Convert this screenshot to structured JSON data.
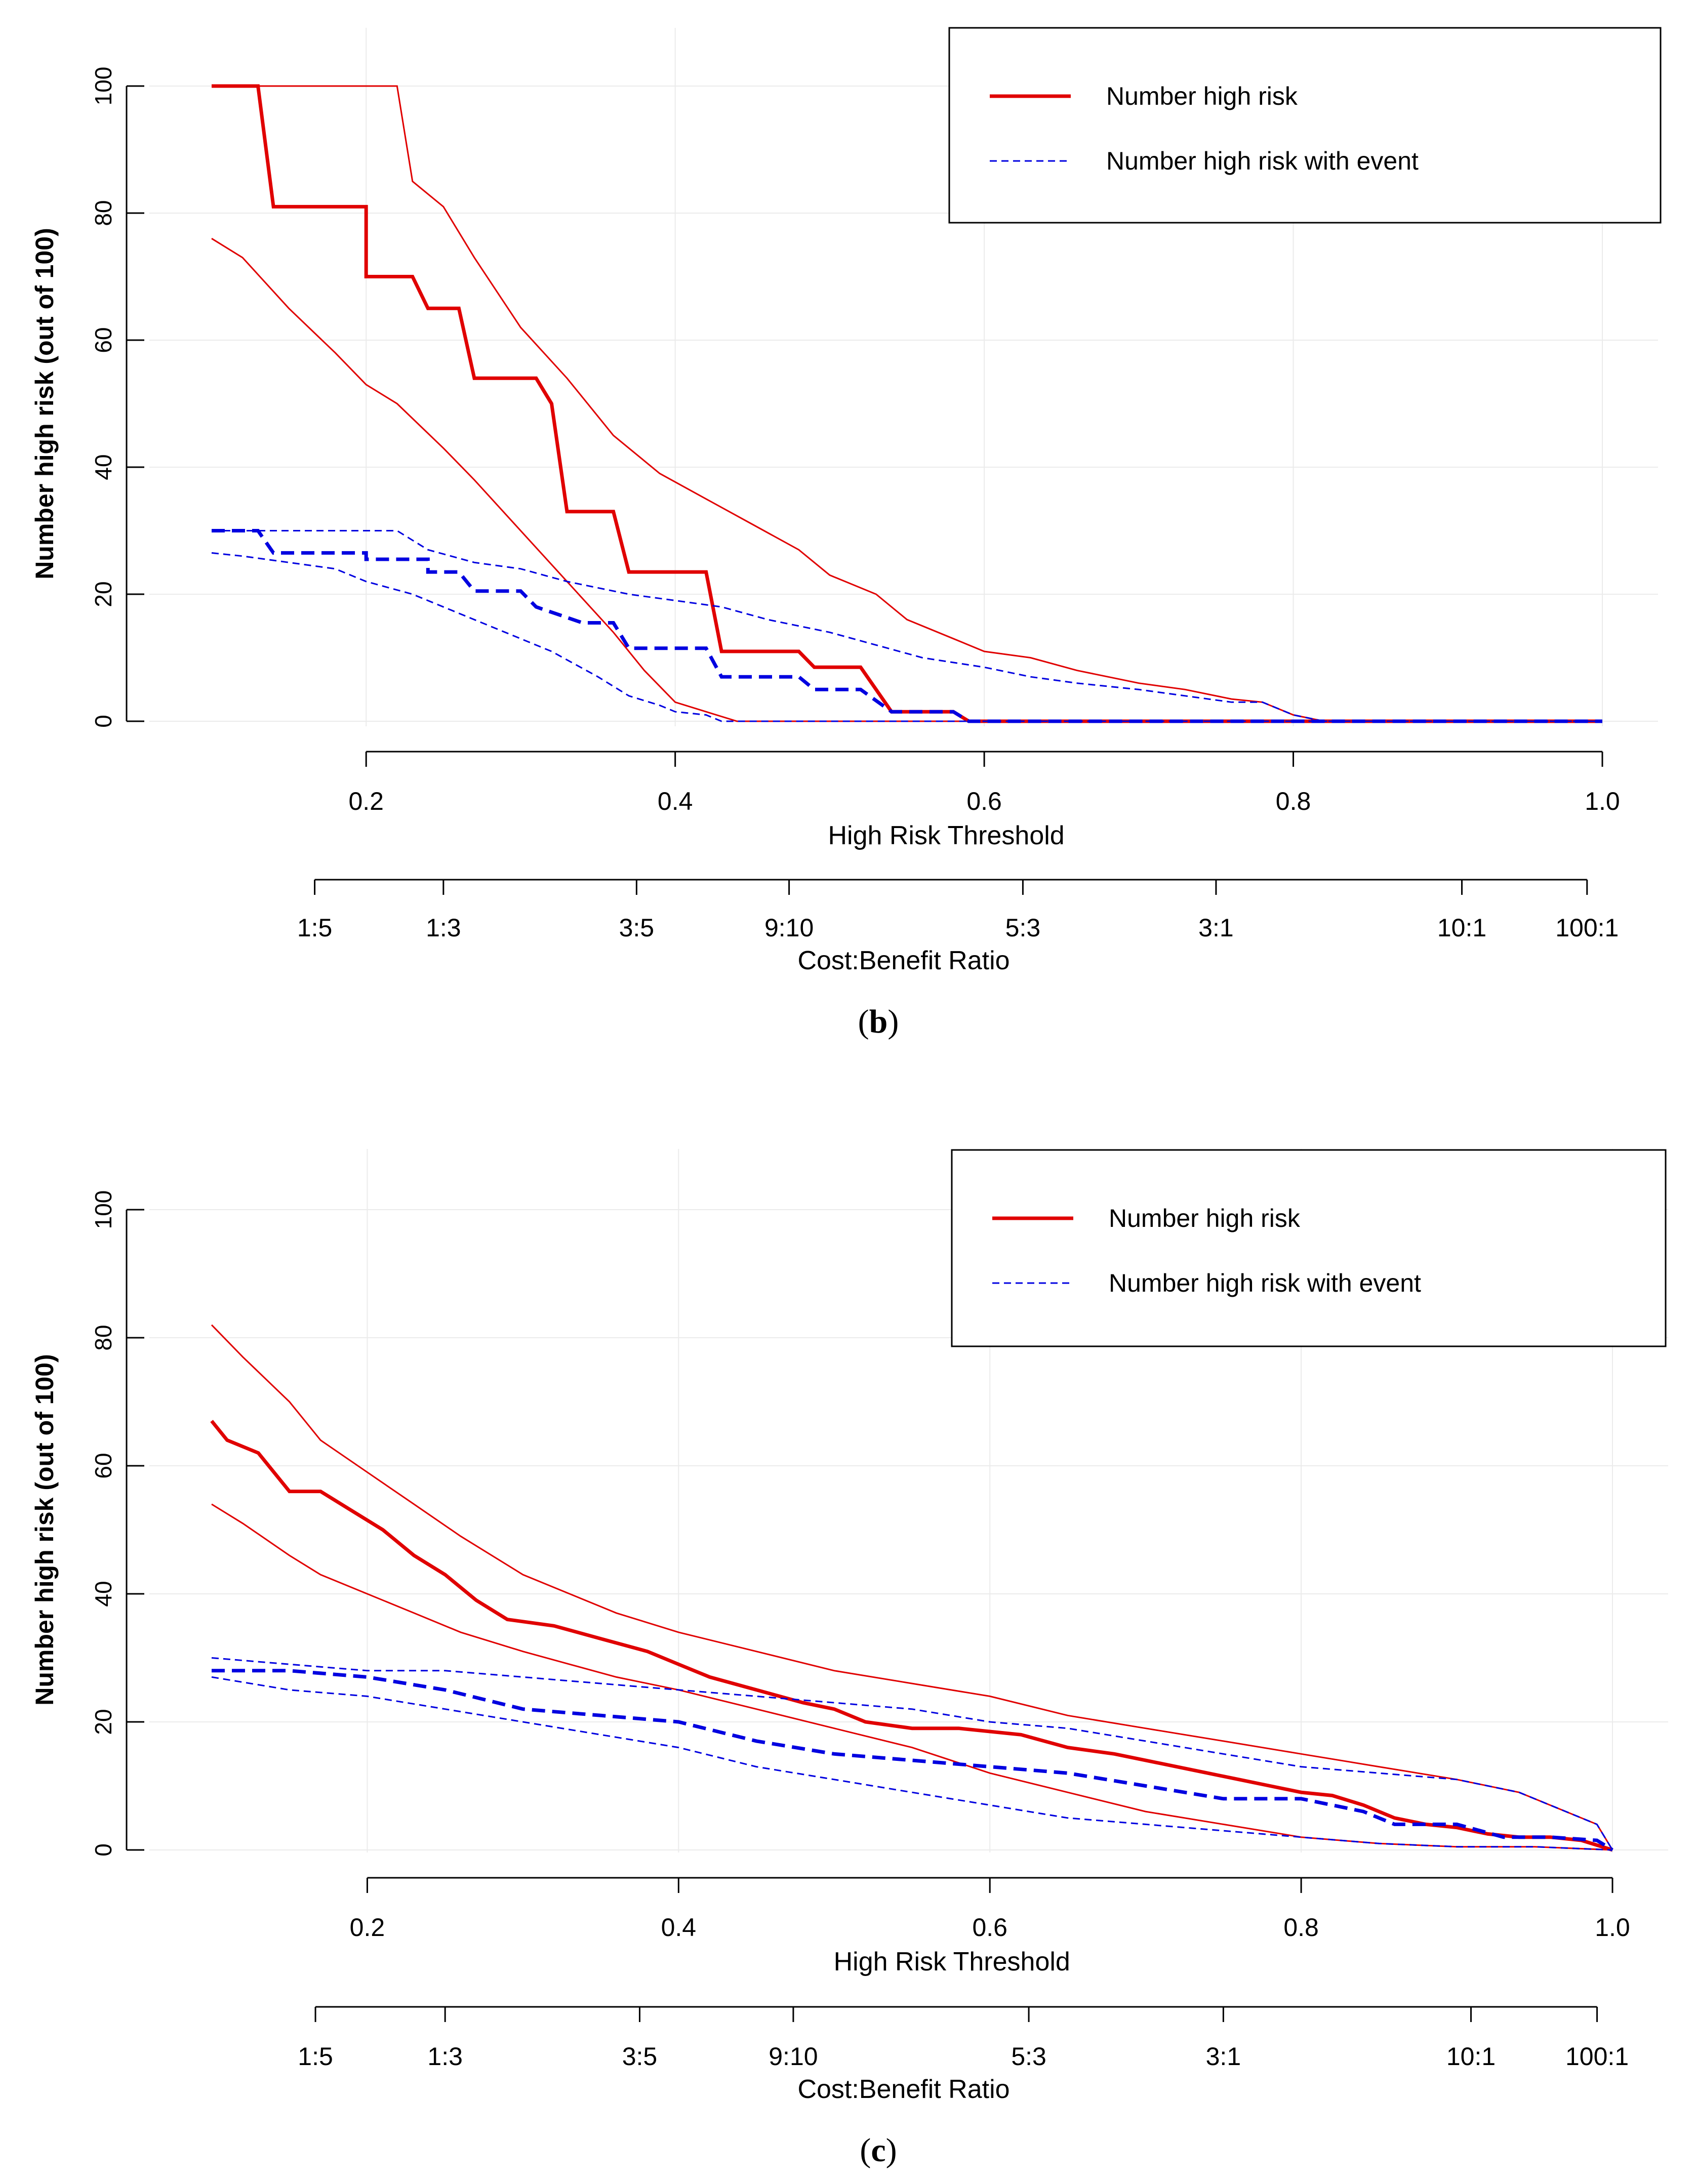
{
  "chart_data": [
    {
      "type": "line",
      "panel_label": "b",
      "xlabel": "High Risk Threshold",
      "ylabel": "Number high risk (out of 100)",
      "xlim": [
        0.1,
        1.0
      ],
      "ylim": [
        0,
        100
      ],
      "x_ticks": [
        "0.2",
        "0.4",
        "0.6",
        "0.8",
        "1.0"
      ],
      "y_ticks": [
        "0",
        "20",
        "40",
        "60",
        "80",
        "100"
      ],
      "cost_benefit_axis": {
        "label": "Cost:Benefit Ratio",
        "ticks": [
          {
            "label": "1:5",
            "threshold": 0.1667
          },
          {
            "label": "1:3",
            "threshold": 0.25
          },
          {
            "label": "3:5",
            "threshold": 0.375
          },
          {
            "label": "9:10",
            "threshold": 0.4737
          },
          {
            "label": "5:3",
            "threshold": 0.625
          },
          {
            "label": "3:1",
            "threshold": 0.75
          },
          {
            "label": "10:1",
            "threshold": 0.9091
          },
          {
            "label": "100:1",
            "threshold": 0.9901
          }
        ]
      },
      "legend": {
        "position": "top-right",
        "entries": [
          {
            "label": "Number high risk",
            "color": "#e00000",
            "dash": "solid"
          },
          {
            "label": "Number high risk with event",
            "color": "#0000e0",
            "dash": "dashed"
          }
        ]
      },
      "series": [
        {
          "name": "Number high risk",
          "color": "#e00000",
          "style": "solid",
          "width": "thick",
          "step": true,
          "x": [
            0.1,
            0.13,
            0.14,
            0.2,
            0.2,
            0.23,
            0.24,
            0.26,
            0.27,
            0.31,
            0.32,
            0.33,
            0.36,
            0.37,
            0.42,
            0.43,
            0.48,
            0.49,
            0.52,
            0.54,
            0.58,
            0.59,
            1.0
          ],
          "y": [
            100,
            100,
            81,
            81,
            70,
            70,
            65,
            65,
            54,
            54,
            50,
            33,
            33,
            23.5,
            23.5,
            11,
            11,
            8.5,
            8.5,
            1.5,
            1.5,
            0,
            0
          ]
        },
        {
          "name": "Number high risk (upper)",
          "color": "#e00000",
          "style": "solid",
          "width": "thin",
          "step": false,
          "x": [
            0.1,
            0.22,
            0.23,
            0.25,
            0.27,
            0.3,
            0.33,
            0.36,
            0.39,
            0.42,
            0.45,
            0.48,
            0.5,
            0.53,
            0.55,
            0.58,
            0.6,
            0.63,
            0.66,
            0.7,
            0.73,
            0.76,
            0.78,
            0.8,
            0.82,
            1.0
          ],
          "y": [
            100,
            100,
            85,
            81,
            73,
            62,
            54,
            45,
            39,
            35,
            31,
            27,
            23,
            20,
            16,
            13,
            11,
            10,
            8,
            6,
            5,
            3.5,
            3,
            1,
            0,
            0
          ]
        },
        {
          "name": "Number high risk (lower)",
          "color": "#e00000",
          "style": "solid",
          "width": "thin",
          "step": false,
          "x": [
            0.1,
            0.12,
            0.15,
            0.18,
            0.2,
            0.22,
            0.25,
            0.27,
            0.3,
            0.33,
            0.36,
            0.38,
            0.4,
            0.42,
            0.44,
            1.0
          ],
          "y": [
            76,
            73,
            65,
            58,
            53,
            50,
            43,
            38,
            30,
            22,
            14,
            8,
            3,
            1.5,
            0,
            0
          ]
        },
        {
          "name": "Number high risk with event",
          "color": "#0000e0",
          "style": "dashed",
          "width": "thick",
          "step": true,
          "x": [
            0.1,
            0.13,
            0.14,
            0.2,
            0.2,
            0.24,
            0.24,
            0.26,
            0.27,
            0.3,
            0.31,
            0.34,
            0.36,
            0.37,
            0.42,
            0.43,
            0.48,
            0.49,
            0.52,
            0.54,
            0.58,
            0.59,
            1.0
          ],
          "y": [
            30,
            30,
            26.5,
            26.5,
            25.5,
            25.5,
            23.5,
            23.5,
            20.5,
            20.5,
            18,
            15.5,
            15.5,
            11.5,
            11.5,
            7,
            7,
            5,
            5,
            1.5,
            1.5,
            0,
            0
          ]
        },
        {
          "name": "Number high risk with event (upper)",
          "color": "#0000e0",
          "style": "dashed",
          "width": "thin",
          "step": false,
          "x": [
            0.1,
            0.22,
            0.24,
            0.27,
            0.3,
            0.33,
            0.37,
            0.4,
            0.43,
            0.46,
            0.5,
            0.53,
            0.56,
            0.6,
            0.63,
            0.66,
            0.7,
            0.73,
            0.76,
            0.78,
            0.8,
            0.82,
            1.0
          ],
          "y": [
            30,
            30,
            27,
            25,
            24,
            22,
            20,
            19,
            18,
            16,
            14,
            12,
            10,
            8.5,
            7,
            6,
            5,
            4,
            3,
            3,
            1,
            0,
            0
          ]
        },
        {
          "name": "Number high risk with event (lower)",
          "color": "#0000e0",
          "style": "dashed",
          "width": "thin",
          "step": false,
          "x": [
            0.1,
            0.12,
            0.15,
            0.18,
            0.2,
            0.23,
            0.26,
            0.29,
            0.32,
            0.35,
            0.37,
            0.39,
            0.4,
            0.42,
            0.43,
            1.0
          ],
          "y": [
            26.5,
            26,
            25,
            24,
            22,
            20,
            17,
            14,
            11,
            7,
            4,
            2.5,
            1.5,
            1,
            0,
            0
          ]
        }
      ]
    },
    {
      "type": "line",
      "panel_label": "c",
      "xlabel": "High Risk Threshold",
      "ylabel": "Number high risk (out of 100)",
      "xlim": [
        0.1,
        1.0
      ],
      "ylim": [
        0,
        100
      ],
      "x_ticks": [
        "0.2",
        "0.4",
        "0.6",
        "0.8",
        "1.0"
      ],
      "y_ticks": [
        "0",
        "20",
        "40",
        "60",
        "80",
        "100"
      ],
      "cost_benefit_axis": {
        "label": "Cost:Benefit Ratio",
        "ticks": [
          {
            "label": "1:5",
            "threshold": 0.1667
          },
          {
            "label": "1:3",
            "threshold": 0.25
          },
          {
            "label": "3:5",
            "threshold": 0.375
          },
          {
            "label": "9:10",
            "threshold": 0.4737
          },
          {
            "label": "5:3",
            "threshold": 0.625
          },
          {
            "label": "3:1",
            "threshold": 0.75
          },
          {
            "label": "10:1",
            "threshold": 0.9091
          },
          {
            "label": "100:1",
            "threshold": 0.9901
          }
        ]
      },
      "legend": {
        "position": "top-right",
        "entries": [
          {
            "label": "Number high risk",
            "color": "#e00000",
            "dash": "solid"
          },
          {
            "label": "Number high risk with event",
            "color": "#0000e0",
            "dash": "dashed"
          }
        ]
      },
      "series": [
        {
          "name": "Number high risk",
          "color": "#e00000",
          "style": "solid",
          "width": "thick",
          "step": false,
          "x": [
            0.1,
            0.11,
            0.13,
            0.15,
            0.17,
            0.19,
            0.21,
            0.23,
            0.25,
            0.27,
            0.29,
            0.32,
            0.35,
            0.38,
            0.4,
            0.42,
            0.45,
            0.48,
            0.5,
            0.52,
            0.55,
            0.58,
            0.62,
            0.65,
            0.68,
            0.7,
            0.72,
            0.74,
            0.76,
            0.78,
            0.8,
            0.82,
            0.84,
            0.86,
            0.88,
            0.9,
            0.92,
            0.94,
            0.96,
            0.98,
            1.0
          ],
          "y": [
            67,
            64,
            62,
            56,
            56,
            53,
            50,
            46,
            43,
            39,
            36,
            35,
            33,
            31,
            29,
            27,
            25,
            23,
            22,
            20,
            19,
            19,
            18,
            16,
            15,
            14,
            13,
            12,
            11,
            10,
            9,
            8.5,
            7,
            5,
            4,
            3.5,
            2.5,
            2,
            2,
            1.5,
            0
          ]
        },
        {
          "name": "Number high risk (upper)",
          "color": "#e00000",
          "style": "solid",
          "width": "thin",
          "step": false,
          "x": [
            0.1,
            0.12,
            0.15,
            0.17,
            0.2,
            0.23,
            0.26,
            0.3,
            0.33,
            0.36,
            0.4,
            0.45,
            0.5,
            0.55,
            0.6,
            0.65,
            0.7,
            0.75,
            0.8,
            0.85,
            0.9,
            0.94,
            0.97,
            0.99,
            1.0
          ],
          "y": [
            82,
            77,
            70,
            64,
            59,
            54,
            49,
            43,
            40,
            37,
            34,
            31,
            28,
            26,
            24,
            21,
            19,
            17,
            15,
            13,
            11,
            9,
            6,
            4,
            0
          ]
        },
        {
          "name": "Number high risk (lower)",
          "color": "#e00000",
          "style": "solid",
          "width": "thin",
          "step": false,
          "x": [
            0.1,
            0.12,
            0.15,
            0.17,
            0.2,
            0.23,
            0.26,
            0.3,
            0.33,
            0.36,
            0.4,
            0.45,
            0.5,
            0.55,
            0.6,
            0.65,
            0.7,
            0.75,
            0.8,
            0.85,
            0.9,
            0.95,
            1.0
          ],
          "y": [
            54,
            51,
            46,
            43,
            40,
            37,
            34,
            31,
            29,
            27,
            25,
            22,
            19,
            16,
            12,
            9,
            6,
            4,
            2,
            1,
            0.5,
            0.5,
            0
          ]
        },
        {
          "name": "Number high risk with event",
          "color": "#0000e0",
          "style": "dashed",
          "width": "thick",
          "step": false,
          "x": [
            0.1,
            0.15,
            0.2,
            0.25,
            0.3,
            0.35,
            0.4,
            0.45,
            0.5,
            0.55,
            0.6,
            0.65,
            0.7,
            0.75,
            0.8,
            0.84,
            0.86,
            0.9,
            0.93,
            0.96,
            0.99,
            1.0
          ],
          "y": [
            28,
            28,
            27,
            25,
            22,
            21,
            20,
            17,
            15,
            14,
            13,
            12,
            10,
            8,
            8,
            6,
            4,
            4,
            2,
            2,
            1.5,
            0
          ]
        },
        {
          "name": "Number high risk with event (upper)",
          "color": "#0000e0",
          "style": "dashed",
          "width": "thin",
          "step": false,
          "x": [
            0.1,
            0.15,
            0.2,
            0.25,
            0.3,
            0.35,
            0.4,
            0.45,
            0.5,
            0.55,
            0.6,
            0.65,
            0.7,
            0.75,
            0.8,
            0.85,
            0.9,
            0.94,
            0.97,
            0.99,
            1.0
          ],
          "y": [
            30,
            29,
            28,
            28,
            27,
            26,
            25,
            24,
            23,
            22,
            20,
            19,
            17,
            15,
            13,
            12,
            11,
            9,
            6,
            4,
            0
          ]
        },
        {
          "name": "Number high risk with event (lower)",
          "color": "#0000e0",
          "style": "dashed",
          "width": "thin",
          "step": false,
          "x": [
            0.1,
            0.15,
            0.2,
            0.25,
            0.3,
            0.35,
            0.4,
            0.45,
            0.5,
            0.55,
            0.6,
            0.65,
            0.7,
            0.75,
            0.8,
            0.85,
            0.9,
            0.95,
            1.0
          ],
          "y": [
            27,
            25,
            24,
            22,
            20,
            18,
            16,
            13,
            11,
            9,
            7,
            5,
            4,
            3,
            2,
            1,
            0.5,
            0.5,
            0
          ]
        }
      ]
    }
  ]
}
